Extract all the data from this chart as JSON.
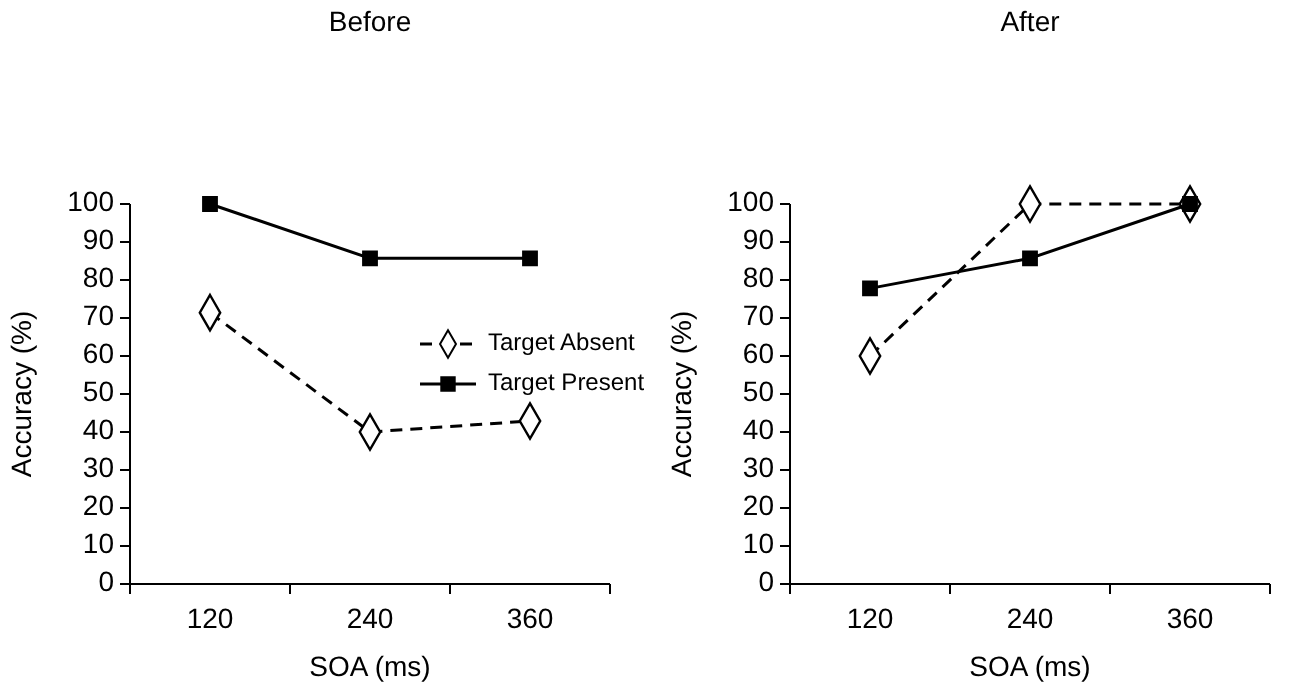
{
  "chart_data": [
    {
      "type": "line",
      "title": "Before",
      "xlabel": "SOA (ms)",
      "ylabel": "Accuracy (%)",
      "categories": [
        "120",
        "240",
        "360"
      ],
      "ylim": [
        0,
        100
      ],
      "yticks": [
        0,
        10,
        20,
        30,
        40,
        50,
        60,
        70,
        80,
        90,
        100
      ],
      "grid": false,
      "legend": "right",
      "series": [
        {
          "name": "Target Absent",
          "color": "#000000",
          "values": [
            71.4,
            40,
            42.9
          ],
          "marker": "diamond",
          "line_style": "dashed"
        },
        {
          "name": "Target Present",
          "color": "#000000",
          "values": [
            100,
            85.7,
            85.7
          ],
          "marker": "square",
          "line_style": "solid"
        }
      ]
    },
    {
      "type": "line",
      "title": "After",
      "xlabel": "SOA (ms)",
      "ylabel": "Accuracy (%)",
      "categories": [
        "120",
        "240",
        "360"
      ],
      "ylim": [
        0,
        100
      ],
      "yticks": [
        0,
        10,
        20,
        30,
        40,
        50,
        60,
        70,
        80,
        90,
        100
      ],
      "grid": false,
      "series": [
        {
          "color": "#000000",
          "values": [
            60,
            100,
            100
          ],
          "marker": "diamond",
          "line_style": "dashed"
        },
        {
          "color": "#000000",
          "values": [
            77.8,
            85.7,
            100
          ],
          "marker": "square",
          "line_style": "solid"
        }
      ]
    }
  ]
}
